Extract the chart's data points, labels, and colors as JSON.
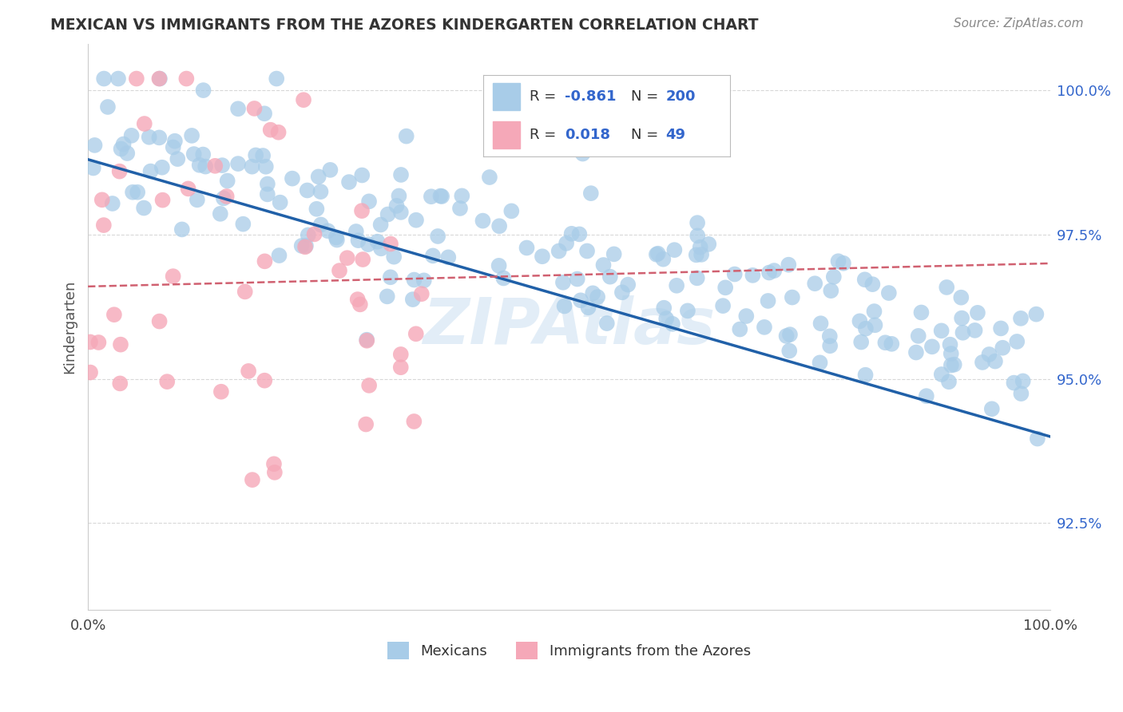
{
  "title": "MEXICAN VS IMMIGRANTS FROM THE AZORES KINDERGARTEN CORRELATION CHART",
  "source_text": "Source: ZipAtlas.com",
  "ylabel": "Kindergarten",
  "y_tick_labels": [
    "92.5%",
    "95.0%",
    "97.5%",
    "100.0%"
  ],
  "y_tick_values": [
    0.925,
    0.95,
    0.975,
    1.0
  ],
  "xlim": [
    0.0,
    1.0
  ],
  "ylim": [
    0.91,
    1.008
  ],
  "blue_color": "#a8cce8",
  "blue_line_color": "#2060a8",
  "pink_color": "#f5a8b8",
  "pink_line_color": "#d06070",
  "blue_r": -0.861,
  "blue_n": 200,
  "pink_r": 0.018,
  "pink_n": 49,
  "watermark_text": "ZIPAtlas",
  "legend_text_color": "#3366cc",
  "legend_label_color": "#333333",
  "background_color": "#ffffff",
  "grid_color": "#d8d8d8",
  "tick_color": "#3366cc",
  "title_color": "#333333",
  "source_color": "#888888",
  "ylabel_color": "#555555"
}
